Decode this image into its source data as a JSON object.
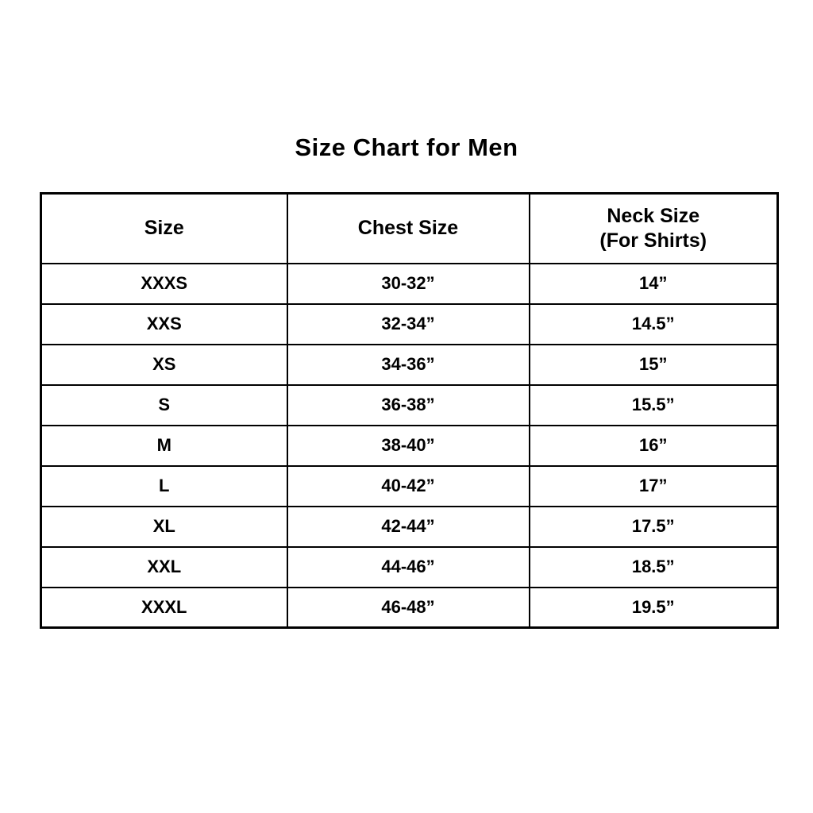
{
  "title": "Size Chart for Men",
  "table": {
    "headers": {
      "size": "Size",
      "chest": "Chest Size",
      "neck_line1": "Neck Size",
      "neck_line2": "(For Shirts)"
    }
  },
  "chart_data": {
    "type": "table",
    "title": "Size Chart for Men",
    "columns": [
      "Size",
      "Chest Size",
      "Neck Size (For Shirts)"
    ],
    "rows": [
      [
        "XXXS",
        "30-32”",
        "14”"
      ],
      [
        "XXS",
        "32-34”",
        "14.5”"
      ],
      [
        "XS",
        "34-36”",
        "15”"
      ],
      [
        "S",
        "36-38”",
        "15.5”"
      ],
      [
        "M",
        "38-40”",
        "16”"
      ],
      [
        "L",
        "40-42”",
        "17”"
      ],
      [
        "XL",
        "42-44”",
        "17.5”"
      ],
      [
        "XXL",
        "44-46”",
        "18.5”"
      ],
      [
        "XXXL",
        "46-48”",
        "19.5”"
      ]
    ],
    "layout": {
      "text_align": "center",
      "font_weight": "bold",
      "border_color": "#000000",
      "background": "#ffffff",
      "grid": true
    }
  }
}
